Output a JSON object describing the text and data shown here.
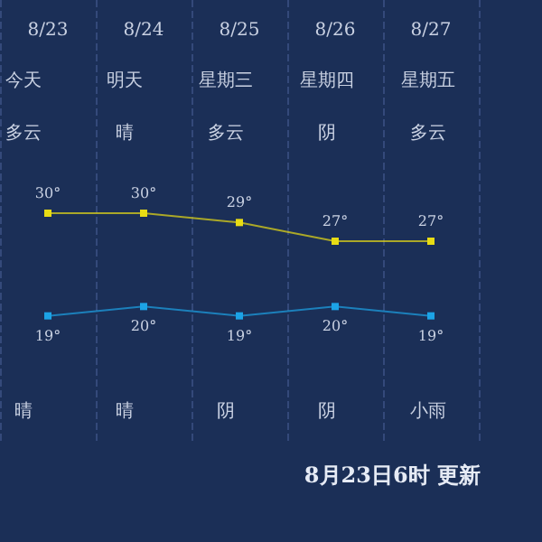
{
  "chart_data": {
    "type": "line",
    "categories": [
      "8/23",
      "8/24",
      "8/25",
      "8/26",
      "8/27"
    ],
    "series": [
      {
        "color": "#e8dc14",
        "values": [
          30,
          30,
          29,
          27,
          27
        ],
        "value_labels": [
          "30°",
          "30°",
          "29°",
          "27°",
          "27°"
        ]
      },
      {
        "color": "#1ca3e6",
        "values": [
          19,
          20,
          19,
          20,
          19
        ],
        "value_labels": [
          "19°",
          "20°",
          "19°",
          "20°",
          "19°"
        ]
      }
    ],
    "annotations": [
      "今天",
      "明天",
      "星期三",
      "星期四",
      "星期五",
      "多云",
      "晴",
      "多云",
      "阴",
      "多云",
      "晴",
      "晴",
      "阴",
      "阴",
      "小雨",
      "8月23日6时 更新"
    ],
    "grid": "x",
    "marker": "square",
    "line_style": "solid"
  }
}
